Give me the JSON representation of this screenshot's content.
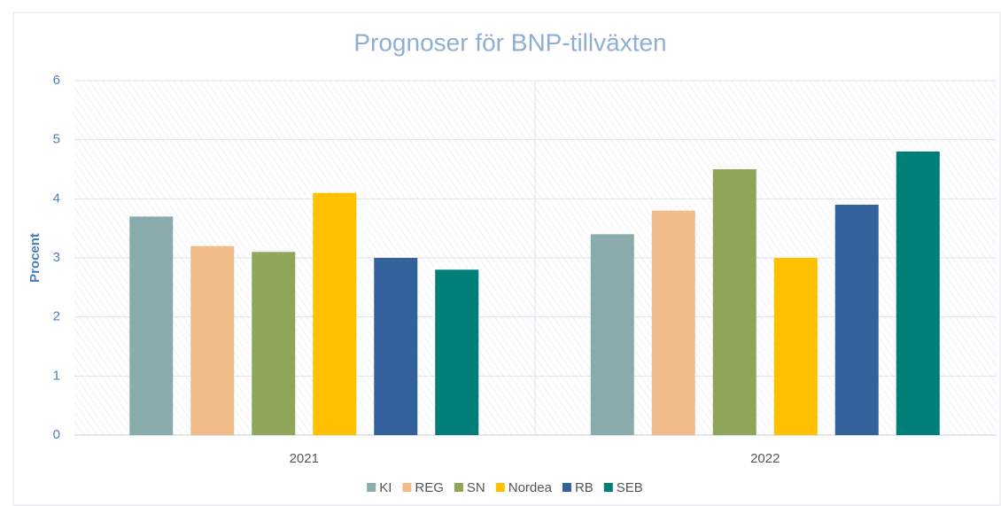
{
  "chart_data": {
    "type": "bar",
    "title": "Prognoser för BNP-tillväxten",
    "y_label": "Procent",
    "categories": [
      "2021",
      "2022"
    ],
    "series": [
      {
        "name": "KI",
        "color": "#8aabab",
        "values": [
          3.7,
          3.4
        ]
      },
      {
        "name": "REG",
        "color": "#f0bc8a",
        "values": [
          3.2,
          3.8
        ]
      },
      {
        "name": "SN",
        "color": "#8fa55a",
        "values": [
          3.1,
          4.5
        ]
      },
      {
        "name": "Nordea",
        "color": "#ffc000",
        "values": [
          4.1,
          3.0
        ]
      },
      {
        "name": "RB",
        "color": "#33619c",
        "values": [
          3.0,
          3.9
        ]
      },
      {
        "name": "SEB",
        "color": "#007f7a",
        "values": [
          2.8,
          4.8
        ]
      }
    ],
    "ylim": [
      0,
      6
    ],
    "yticks": [
      0,
      1,
      2,
      3,
      4,
      5,
      6
    ],
    "grid": true,
    "legend": "bottom"
  }
}
